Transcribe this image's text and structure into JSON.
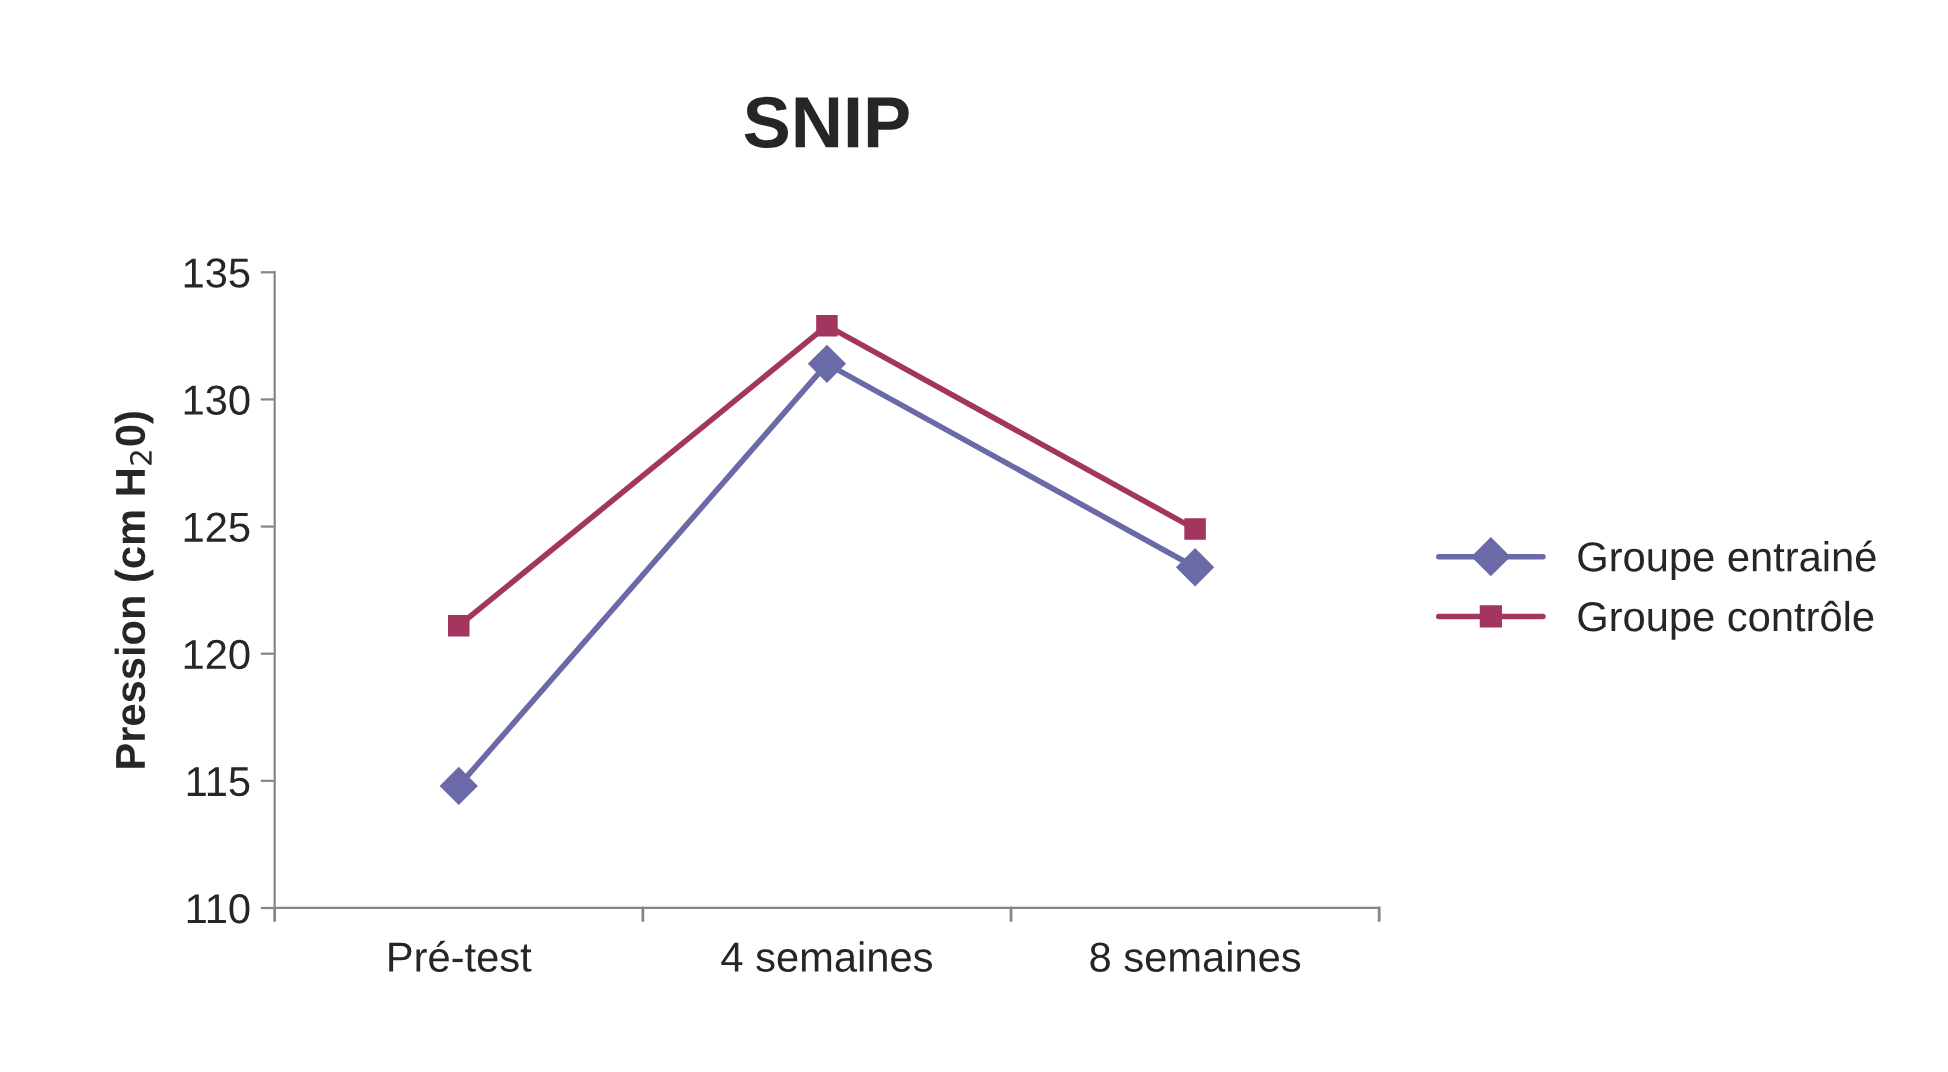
{
  "chart_data": {
    "type": "line",
    "title": "SNIP",
    "ylabel": "Pression (cm H$_{2}$0)",
    "categories": [
      "Pré-test",
      "4 semaines",
      "8 semaines"
    ],
    "series": [
      {
        "name": "Groupe entrainé",
        "color": "#6a6aa8",
        "marker": "diamond",
        "values": [
          114.8,
          131.4,
          123.4
        ]
      },
      {
        "name": "Groupe contrôle",
        "color": "#a3365f",
        "marker": "square",
        "values": [
          121.1,
          132.9,
          124.9
        ]
      }
    ],
    "ylim": [
      110,
      135
    ],
    "yticks": [
      110,
      115,
      120,
      125,
      130,
      135
    ],
    "grid": false,
    "legend": "right",
    "line_style": "solid"
  }
}
